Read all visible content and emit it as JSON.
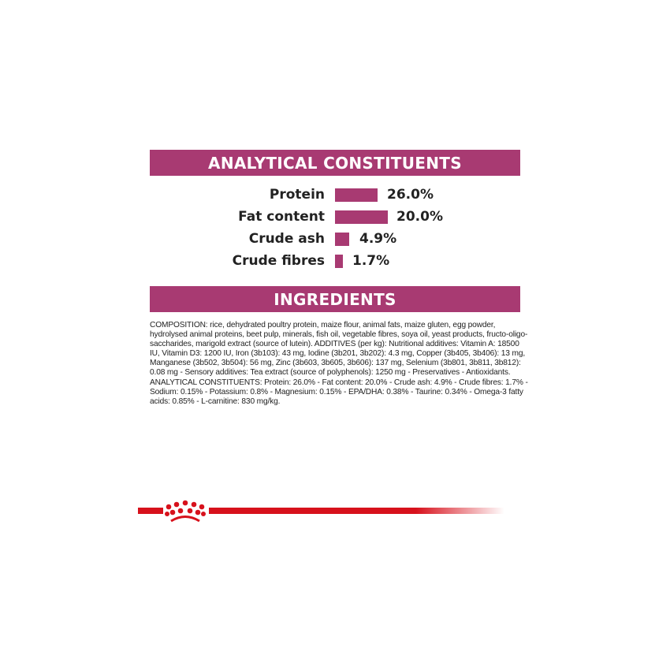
{
  "analytical": {
    "title": "ANALYTICAL CONSTITUENTS",
    "bar_color": "#a83a72",
    "items": [
      {
        "label": "Protein",
        "value": "26.0%",
        "percent": 26.0
      },
      {
        "label": "Fat content",
        "value": "20.0%",
        "percent": 20.0
      },
      {
        "label": "Crude ash",
        "value": "4.9%",
        "percent": 4.9
      },
      {
        "label": "Crude fibres",
        "value": "1.7%",
        "percent": 1.7
      }
    ]
  },
  "ingredients": {
    "title": "INGREDIENTS",
    "text": "COMPOSITION: rice, dehydrated poultry protein, maize flour, animal fats, maize gluten, egg powder, hydrolysed animal proteins, beet pulp, minerals, fish oil, vegetable fibres, soya oil, yeast products, fructo-oligo-saccharides, marigold extract (source of lutein). ADDITIVES (per kg): Nutritional additives: Vitamin A: 18500 IU, Vitamin D3: 1200 IU, Iron (3b103): 43 mg, Iodine (3b201, 3b202): 4.3 mg, Copper (3b405, 3b406): 13 mg, Manganese (3b502, 3b504): 56 mg, Zinc (3b603, 3b605, 3b606): 137 mg, Selenium (3b801, 3b811, 3b812): 0.08 mg - Sensory additives: Tea extract (source of polyphenols): 1250 mg - Preservatives - Antioxidants. ANALYTICAL CONSTITUENTS: Protein: 26.0% - Fat content: 20.0% - Crude ash: 4.9% - Crude fibres: 1.7% - Sodium: 0.15% - Potassium: 0.8% - Magnesium: 0.15% - EPA/DHA: 0.38% - Taurine: 0.34% - Omega-3 fatty acids: 0.85% - L-carnitine: 830 mg/kg."
  },
  "footer": {
    "logo_icon": "royal-canin-crown-icon",
    "accent": "#d7111c"
  }
}
